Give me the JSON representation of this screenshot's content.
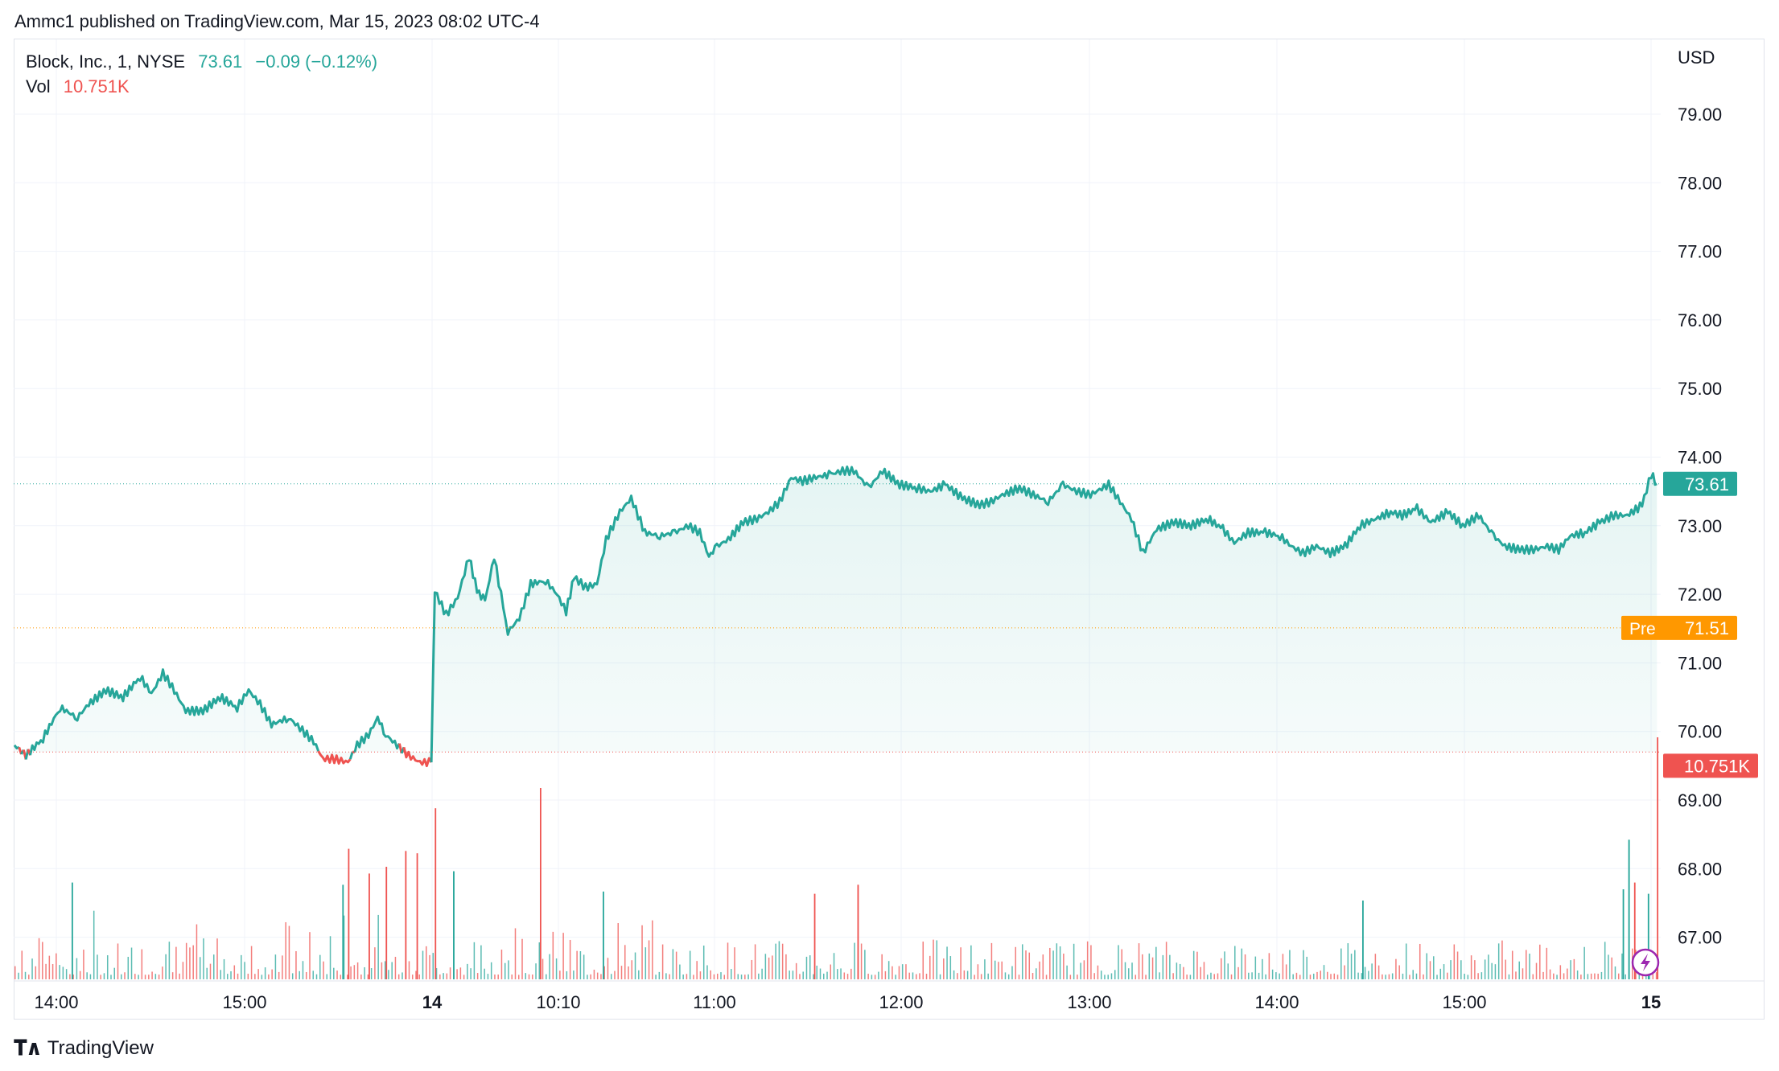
{
  "header": {
    "published": "Ammc1 published on TradingView.com, Mar 15, 2023 08:02 UTC-4"
  },
  "legend": {
    "symbol": "Block, Inc., 1, NYSE",
    "price": "73.61",
    "change": "−0.09 (−0.12%)",
    "vol_label": "Vol",
    "vol_value": "10.751K"
  },
  "footer": {
    "brand": "TradingView"
  },
  "colors": {
    "up": "#26a69a",
    "down": "#ef5350",
    "pre": "#ff9800",
    "grid": "#f0f3fa",
    "text": "#131722"
  },
  "chart_data": {
    "type": "area",
    "currency": "USD",
    "y_ticks": [
      "79.00",
      "78.00",
      "77.00",
      "76.00",
      "75.00",
      "74.00",
      "73.00",
      "72.00",
      "71.00",
      "70.00",
      "69.00",
      "68.00",
      "67.00"
    ],
    "ylim": [
      66.4,
      80.0
    ],
    "x_ticks": [
      "14:00",
      "15:00",
      "14",
      "10:10",
      "11:00",
      "12:00",
      "13:00",
      "14:00",
      "15:00",
      "15"
    ],
    "x_ticks_bold": [
      "14",
      "15"
    ],
    "price_labels": {
      "last": "73.61",
      "pre_label": "Pre",
      "pre_value": "71.51",
      "volume": "10.751K"
    },
    "price_lines": {
      "last": 73.61,
      "pre": 71.51,
      "prev_close": 69.7
    },
    "series": [
      {
        "name": "Block, Inc.",
        "control_points": [
          [
            0,
            69.8
          ],
          [
            10,
            69.65
          ],
          [
            25,
            69.9
          ],
          [
            40,
            70.35
          ],
          [
            55,
            70.2
          ],
          [
            65,
            70.4
          ],
          [
            80,
            70.6
          ],
          [
            95,
            70.5
          ],
          [
            110,
            70.8
          ],
          [
            120,
            70.55
          ],
          [
            130,
            70.85
          ],
          [
            138,
            70.65
          ],
          [
            150,
            70.3
          ],
          [
            165,
            70.3
          ],
          [
            180,
            70.5
          ],
          [
            195,
            70.35
          ],
          [
            205,
            70.6
          ],
          [
            215,
            70.4
          ],
          [
            225,
            70.1
          ],
          [
            240,
            70.2
          ],
          [
            250,
            70.05
          ],
          [
            262,
            69.85
          ],
          [
            270,
            69.6
          ],
          [
            280,
            69.6
          ],
          [
            292,
            69.55
          ],
          [
            300,
            69.8
          ],
          [
            310,
            69.95
          ],
          [
            318,
            70.2
          ],
          [
            325,
            69.95
          ],
          [
            335,
            69.8
          ],
          [
            345,
            69.65
          ],
          [
            355,
            69.55
          ],
          [
            365,
            69.55
          ],
          [
            368,
            72.05
          ],
          [
            378,
            71.7
          ],
          [
            388,
            71.95
          ],
          [
            398,
            72.55
          ],
          [
            405,
            72.05
          ],
          [
            412,
            71.9
          ],
          [
            420,
            72.55
          ],
          [
            428,
            71.8
          ],
          [
            432,
            71.45
          ],
          [
            442,
            71.65
          ],
          [
            452,
            72.15
          ],
          [
            465,
            72.2
          ],
          [
            475,
            72.0
          ],
          [
            483,
            71.75
          ],
          [
            490,
            72.25
          ],
          [
            500,
            72.1
          ],
          [
            510,
            72.15
          ],
          [
            518,
            72.8
          ],
          [
            530,
            73.2
          ],
          [
            540,
            73.4
          ],
          [
            552,
            72.9
          ],
          [
            565,
            72.85
          ],
          [
            578,
            72.9
          ],
          [
            590,
            73.0
          ],
          [
            600,
            72.9
          ],
          [
            608,
            72.55
          ],
          [
            615,
            72.7
          ],
          [
            625,
            72.8
          ],
          [
            638,
            73.05
          ],
          [
            650,
            73.1
          ],
          [
            660,
            73.2
          ],
          [
            670,
            73.35
          ],
          [
            680,
            73.7
          ],
          [
            690,
            73.65
          ],
          [
            700,
            73.7
          ],
          [
            715,
            73.75
          ],
          [
            725,
            73.8
          ],
          [
            735,
            73.8
          ],
          [
            748,
            73.55
          ],
          [
            760,
            73.8
          ],
          [
            775,
            73.6
          ],
          [
            790,
            73.55
          ],
          [
            802,
            73.5
          ],
          [
            815,
            73.6
          ],
          [
            830,
            73.4
          ],
          [
            845,
            73.3
          ],
          [
            855,
            73.35
          ],
          [
            865,
            73.45
          ],
          [
            880,
            73.55
          ],
          [
            892,
            73.45
          ],
          [
            905,
            73.35
          ],
          [
            918,
            73.6
          ],
          [
            930,
            73.5
          ],
          [
            942,
            73.45
          ],
          [
            958,
            73.6
          ],
          [
            968,
            73.35
          ],
          [
            978,
            73.1
          ],
          [
            988,
            72.6
          ],
          [
            1000,
            72.95
          ],
          [
            1015,
            73.05
          ],
          [
            1030,
            73.0
          ],
          [
            1045,
            73.1
          ],
          [
            1058,
            72.95
          ],
          [
            1068,
            72.75
          ],
          [
            1080,
            72.9
          ],
          [
            1095,
            72.9
          ],
          [
            1108,
            72.85
          ],
          [
            1118,
            72.7
          ],
          [
            1128,
            72.6
          ],
          [
            1140,
            72.7
          ],
          [
            1152,
            72.6
          ],
          [
            1165,
            72.7
          ],
          [
            1178,
            73.0
          ],
          [
            1192,
            73.1
          ],
          [
            1205,
            73.2
          ],
          [
            1215,
            73.15
          ],
          [
            1228,
            73.25
          ],
          [
            1240,
            73.05
          ],
          [
            1255,
            73.2
          ],
          [
            1268,
            73.0
          ],
          [
            1282,
            73.15
          ],
          [
            1295,
            72.85
          ],
          [
            1305,
            72.7
          ],
          [
            1318,
            72.65
          ],
          [
            1330,
            72.65
          ],
          [
            1342,
            72.7
          ],
          [
            1352,
            72.65
          ],
          [
            1362,
            72.85
          ],
          [
            1375,
            72.9
          ],
          [
            1388,
            73.05
          ],
          [
            1400,
            73.15
          ],
          [
            1412,
            73.15
          ],
          [
            1425,
            73.3
          ],
          [
            1433,
            73.75
          ],
          [
            1438,
            73.61
          ]
        ]
      }
    ],
    "x_units_note": "x is bar index (1-minute bars, about 1440 total)",
    "volume": {
      "name": "Vol",
      "max_k": 11.0,
      "spikes": [
        [
          50,
          4.3,
          "up"
        ],
        [
          287,
          4.2,
          "up"
        ],
        [
          292,
          5.8,
          "down"
        ],
        [
          310,
          4.7,
          "down"
        ],
        [
          325,
          5.0,
          "down"
        ],
        [
          342,
          5.7,
          "down"
        ],
        [
          352,
          5.6,
          "down"
        ],
        [
          368,
          7.6,
          "down"
        ],
        [
          384,
          4.8,
          "up"
        ],
        [
          460,
          8.5,
          "down"
        ],
        [
          515,
          3.9,
          "up"
        ],
        [
          700,
          3.8,
          "down"
        ],
        [
          738,
          4.2,
          "down"
        ],
        [
          1180,
          3.5,
          "up"
        ],
        [
          1408,
          4.0,
          "up"
        ],
        [
          1413,
          6.2,
          "up"
        ],
        [
          1418,
          4.3,
          "down"
        ],
        [
          1430,
          3.8,
          "up"
        ],
        [
          1438,
          10.751,
          "down"
        ]
      ]
    }
  }
}
